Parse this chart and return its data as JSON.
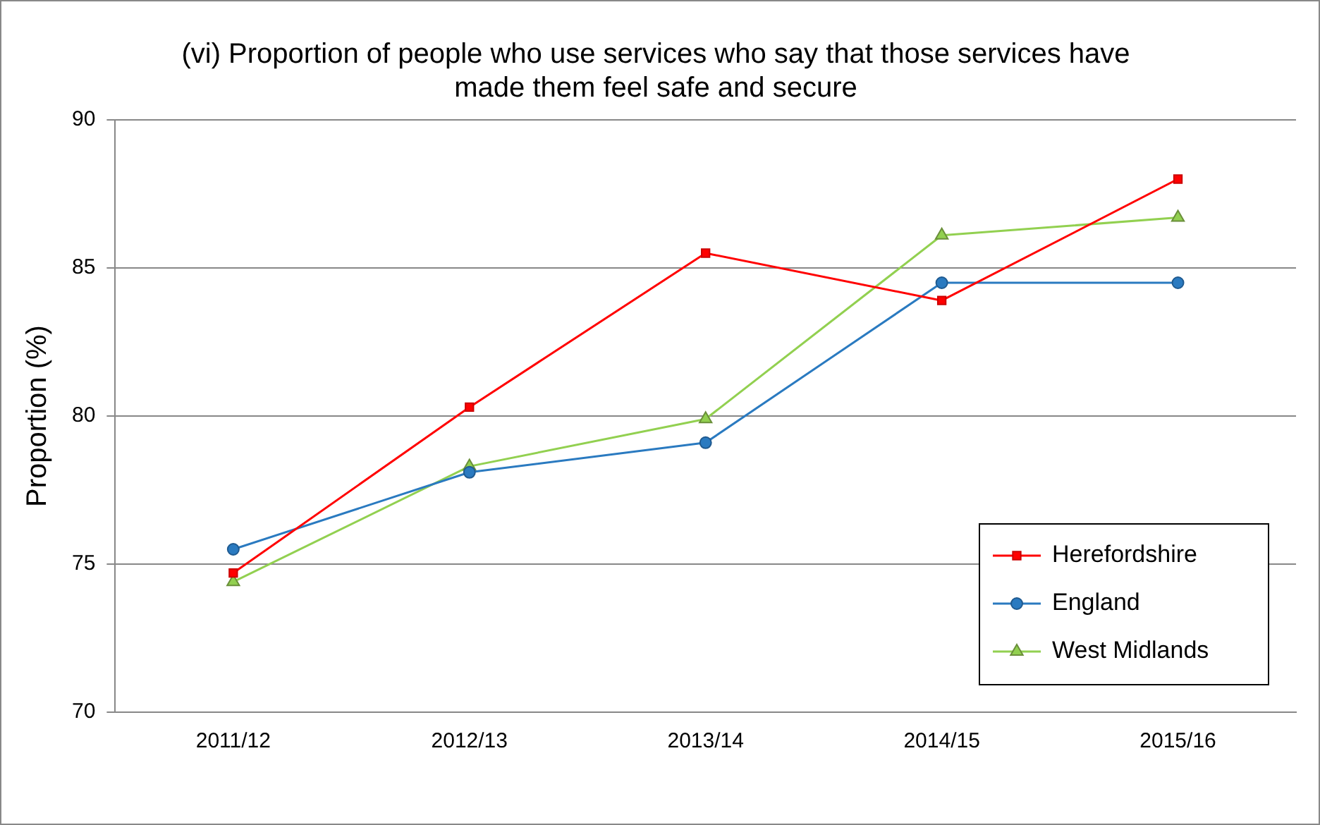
{
  "chart_data": {
    "type": "line",
    "title": "(vi) Proportion of people who use services who say that those services have made them feel safe and secure",
    "ylabel": "Proportion (%)",
    "categories": [
      "2011/12",
      "2012/13",
      "2013/14",
      "2014/15",
      "2015/16"
    ],
    "series": [
      {
        "name": "Herefordshire",
        "color": "#ff0000",
        "marker": "square",
        "values": [
          74.7,
          80.3,
          85.5,
          83.9,
          88.0
        ]
      },
      {
        "name": "England",
        "color": "#2a7ac0",
        "marker": "circle",
        "values": [
          75.5,
          78.1,
          79.1,
          84.5,
          84.5
        ]
      },
      {
        "name": "West Midlands",
        "color": "#92d050",
        "marker": "triangle",
        "values": [
          74.4,
          78.3,
          79.9,
          86.1,
          86.7
        ]
      }
    ],
    "ylim": [
      70,
      90
    ],
    "yticks": [
      70,
      75,
      80,
      85,
      90
    ],
    "grid": "y",
    "legend": "bottom right",
    "line_style": "solid"
  }
}
